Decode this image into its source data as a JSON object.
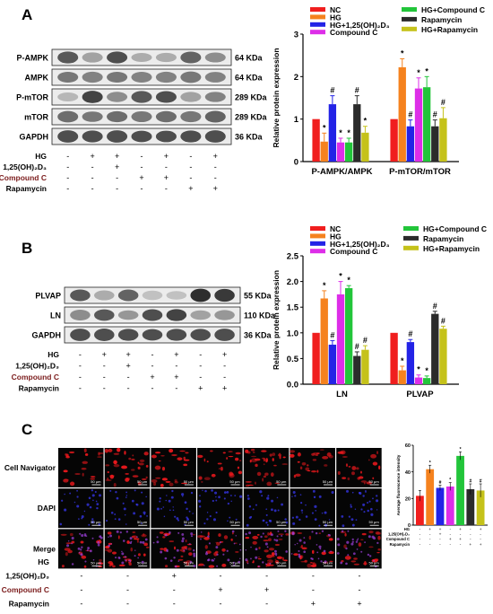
{
  "panels": {
    "A": "A",
    "B": "B",
    "C": "C"
  },
  "colors": {
    "NC": "#f01e1e",
    "HG": "#f5821e",
    "HG_VD": "#2323e6",
    "CompoundC": "#dd2ee8",
    "HG_CompoundC": "#22c53a",
    "Rapamycin": "#2b2b2b",
    "HG_Rapamycin": "#c5c21a"
  },
  "legend": {
    "col1": [
      {
        "key": "NC",
        "label": "NC"
      },
      {
        "key": "HG",
        "label": "HG"
      },
      {
        "key": "HG_VD",
        "label": "HG+1,25(OH)₂D₃"
      },
      {
        "key": "CompoundC",
        "label": "Compound C"
      }
    ],
    "col2": [
      {
        "key": "HG_CompoundC",
        "label": "HG+Compound C"
      },
      {
        "key": "Rapamycin",
        "label": "Rapamycin"
      },
      {
        "key": "HG_Rapamycin",
        "label": "HG+Rapamycin"
      }
    ]
  },
  "blotA": {
    "bands": [
      {
        "label": "P-AMPK",
        "kda": "64 KDa"
      },
      {
        "label": "AMPK",
        "kda": "64 KDa"
      },
      {
        "label": "P-mTOR",
        "kda": "289 KDa"
      },
      {
        "label": "mTOR",
        "kda": "289 KDa"
      },
      {
        "label": "GAPDH",
        "kda": "36 KDa"
      }
    ],
    "conditions": [
      {
        "label": "HG",
        "signs": [
          "-",
          "+",
          "+",
          "-",
          "+",
          "-",
          "+"
        ]
      },
      {
        "label": "1,25(OH)₂D₃",
        "signs": [
          "-",
          "-",
          "+",
          "-",
          "-",
          "-",
          "-"
        ]
      },
      {
        "label": "Compound C",
        "signs": [
          "-",
          "-",
          "-",
          "+",
          "+",
          "-",
          "-"
        ]
      },
      {
        "label": "Rapamycin",
        "signs": [
          "-",
          "-",
          "-",
          "-",
          "-",
          "+",
          "+"
        ]
      }
    ]
  },
  "blotB": {
    "bands": [
      {
        "label": "PLVAP",
        "kda": "55 KDa"
      },
      {
        "label": "LN",
        "kda": "110 KDa"
      },
      {
        "label": "GAPDH",
        "kda": "36 KDa"
      }
    ],
    "conditions": [
      {
        "label": "HG",
        "signs": [
          "-",
          "+",
          "+",
          "-",
          "+",
          "-",
          "+"
        ]
      },
      {
        "label": "1,25(OH)₂D₃",
        "signs": [
          "-",
          "-",
          "+",
          "-",
          "-",
          "-",
          "-"
        ]
      },
      {
        "label": "Compound C",
        "signs": [
          "-",
          "-",
          "-",
          "+",
          "+",
          "-",
          "-"
        ]
      },
      {
        "label": "Rapamycin",
        "signs": [
          "-",
          "-",
          "-",
          "-",
          "-",
          "+",
          "+"
        ]
      }
    ]
  },
  "micro": {
    "rows": [
      "Cell Navigator",
      "DAPI",
      "Merge"
    ],
    "scale": "50 μm",
    "conditions": [
      {
        "label": "HG",
        "signs": [
          "-",
          "+",
          "+",
          "-",
          "+",
          "-",
          "+"
        ]
      },
      {
        "label": "1,25(OH)₂D₃",
        "signs": [
          "-",
          "-",
          "+",
          "-",
          "-",
          "-",
          "-"
        ]
      },
      {
        "label": "Compound C",
        "signs": [
          "-",
          "-",
          "-",
          "+",
          "+",
          "-",
          "-"
        ]
      },
      {
        "label": "Rapamycin",
        "signs": [
          "-",
          "-",
          "-",
          "-",
          "-",
          "+",
          "+"
        ]
      }
    ]
  },
  "chart_data": [
    {
      "type": "bar",
      "panel": "A",
      "title": "",
      "xlabel": "",
      "ylabel": "Relative protein expression",
      "ylim": [
        0,
        3
      ],
      "yticks": [
        "0",
        "1",
        "2",
        "3"
      ],
      "categories": [
        "P-AMPK/AMPK",
        "P-mTOR/mTOR"
      ],
      "series": [
        {
          "name": "NC",
          "values": [
            1.0,
            1.0
          ],
          "errors": [
            0,
            0
          ],
          "marks": [
            "",
            ""
          ]
        },
        {
          "name": "HG",
          "values": [
            0.47,
            2.22
          ],
          "errors": [
            0.2,
            0.2
          ],
          "marks": [
            "*",
            "*"
          ]
        },
        {
          "name": "HG+1,25(OH)₂D₃",
          "values": [
            1.35,
            0.83
          ],
          "errors": [
            0.2,
            0.15
          ],
          "marks": [
            "#",
            "#"
          ]
        },
        {
          "name": "Compound C",
          "values": [
            0.45,
            1.72
          ],
          "errors": [
            0.1,
            0.25
          ],
          "marks": [
            "*",
            "*"
          ]
        },
        {
          "name": "HG+Compound C",
          "values": [
            0.45,
            1.75
          ],
          "errors": [
            0.1,
            0.25
          ],
          "marks": [
            "*",
            "*"
          ]
        },
        {
          "name": "Rapamycin",
          "values": [
            1.35,
            0.83
          ],
          "errors": [
            0.2,
            0.15
          ],
          "marks": [
            "#",
            "#"
          ]
        },
        {
          "name": "HG+Rapamycin",
          "values": [
            0.68,
            1.02
          ],
          "errors": [
            0.15,
            0.25
          ],
          "marks": [
            "*",
            "#"
          ]
        }
      ]
    },
    {
      "type": "bar",
      "panel": "B",
      "title": "",
      "xlabel": "",
      "ylabel": "Relative protein expression",
      "ylim": [
        0,
        2.5
      ],
      "yticks": [
        "0.0",
        "0.5",
        "1.0",
        "1.5",
        "2.0",
        "2.5"
      ],
      "categories": [
        "LN",
        "PLVAP"
      ],
      "series": [
        {
          "name": "NC",
          "values": [
            1.0,
            1.0
          ],
          "errors": [
            0,
            0
          ],
          "marks": [
            "",
            ""
          ]
        },
        {
          "name": "HG",
          "values": [
            1.67,
            0.27
          ],
          "errors": [
            0.15,
            0.08
          ],
          "marks": [
            "*",
            "*"
          ]
        },
        {
          "name": "HG+1,25(OH)₂D₃",
          "values": [
            0.77,
            0.82
          ],
          "errors": [
            0.08,
            0.05
          ],
          "marks": [
            "#",
            "#"
          ]
        },
        {
          "name": "Compound C",
          "values": [
            1.75,
            0.13
          ],
          "errors": [
            0.25,
            0.05
          ],
          "marks": [
            "*",
            "*"
          ]
        },
        {
          "name": "HG+Compound C",
          "values": [
            1.87,
            0.12
          ],
          "errors": [
            0.05,
            0.04
          ],
          "marks": [
            "*",
            "*"
          ]
        },
        {
          "name": "Rapamycin",
          "values": [
            0.55,
            1.37
          ],
          "errors": [
            0.08,
            0.05
          ],
          "marks": [
            "#",
            "#"
          ]
        },
        {
          "name": "HG+Rapamycin",
          "values": [
            0.67,
            1.08
          ],
          "errors": [
            0.08,
            0.05
          ],
          "marks": [
            "#",
            "#"
          ]
        }
      ]
    },
    {
      "type": "bar",
      "panel": "C",
      "title": "",
      "xlabel": "",
      "ylabel": "Average fluorescence intensity",
      "ylim": [
        0,
        60
      ],
      "yticks": [
        "0",
        "20",
        "40",
        "60"
      ],
      "categories": [
        "NC",
        "HG",
        "HG+1,25(OH)₂D₃",
        "Compound C",
        "HG+Compound C",
        "Rapamycin",
        "HG+Rapamycin"
      ],
      "values": [
        22,
        42,
        28,
        29,
        52,
        27,
        26
      ],
      "errors": [
        4,
        3,
        2,
        3,
        3,
        4,
        5
      ],
      "marks": [
        "",
        "*",
        "#",
        "*",
        "*",
        "#",
        "#"
      ],
      "conditions": [
        {
          "label": "HG",
          "signs": [
            "-",
            "+",
            "+",
            "-",
            "+",
            "-",
            "+"
          ]
        },
        {
          "label": "1,25(OH)₂D₃",
          "signs": [
            "-",
            "-",
            "+",
            "-",
            "-",
            "-",
            "-"
          ]
        },
        {
          "label": "Compound C",
          "signs": [
            "-",
            "-",
            "-",
            "+",
            "+",
            "-",
            "-"
          ]
        },
        {
          "label": "Rapamycin",
          "signs": [
            "-",
            "-",
            "-",
            "-",
            "-",
            "+",
            "+"
          ]
        }
      ]
    }
  ]
}
